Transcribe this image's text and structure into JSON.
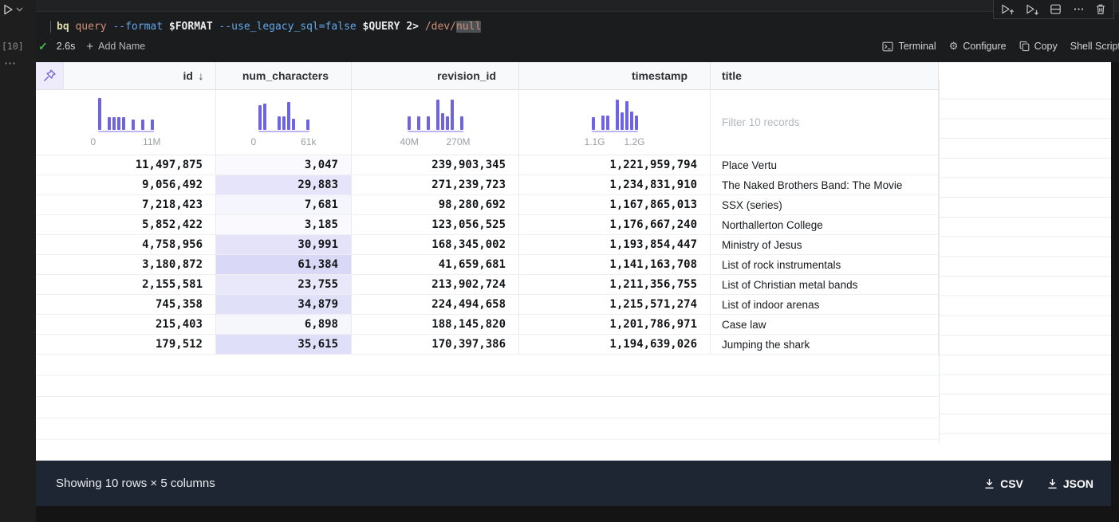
{
  "colors": {
    "accent_purple": "#6e63e0",
    "heat_max": "#d9d8f6",
    "success_green": "#3fb950",
    "footer_bg": "#1f2633"
  },
  "left_rail": {
    "execution_count": "[10]"
  },
  "cell": {
    "command_tokens": [
      {
        "text": "bq",
        "color": "#dcdcaa",
        "bold": true
      },
      {
        "text": " query",
        "color": "#ce9178"
      },
      {
        "text": " --format",
        "color": "#62a8ea"
      },
      {
        "text": " $FORMAT",
        "color": "#eaeaea",
        "bold": true
      },
      {
        "text": " --use_legacy_sql=false",
        "color": "#62a8ea"
      },
      {
        "text": " $QUERY",
        "color": "#eaeaea",
        "bold": true
      },
      {
        "text": " 2>",
        "color": "#eaeaea",
        "bold": true
      },
      {
        "text": " /dev/",
        "color": "#ce9178"
      },
      {
        "text": "null",
        "color": "#ce9178",
        "highlight": true
      }
    ],
    "status": {
      "duration": "2.6s",
      "add_name_label": "Add Name"
    },
    "actions": [
      {
        "label": "Terminal"
      },
      {
        "label": "Configure"
      },
      {
        "label": "Copy"
      },
      {
        "label": "Shell Script"
      }
    ]
  },
  "table": {
    "columns": [
      {
        "key": "id",
        "label": "id",
        "sorted": "desc",
        "hist": {
          "heights": [
            40,
            0,
            16,
            16,
            16,
            16,
            0,
            13,
            0,
            13,
            0,
            13
          ],
          "min": "0",
          "max": "11M"
        }
      },
      {
        "key": "num_characters",
        "label": "num_characters",
        "hist": {
          "heights": [
            31,
            33,
            0,
            0,
            17,
            17,
            35,
            14,
            0,
            0,
            13
          ],
          "min": "0",
          "max": "61k"
        }
      },
      {
        "key": "revision_id",
        "label": "revision_id",
        "hist": {
          "heights": [
            17,
            0,
            17,
            0,
            17,
            0,
            38,
            21,
            17,
            38,
            0,
            17
          ],
          "min": "40M",
          "max": "270M"
        }
      },
      {
        "key": "timestamp",
        "label": "timestamp",
        "hist": {
          "heights": [
            16,
            0,
            18,
            18,
            0,
            38,
            22,
            36,
            23,
            18
          ],
          "min": "1.1G",
          "max": "1.2G"
        }
      },
      {
        "key": "title",
        "label": "title",
        "filter_placeholder": "Filter 10 records"
      }
    ],
    "rows": [
      {
        "id": "11,497,875",
        "num_characters": "3,047",
        "num_bg": "#fafafe",
        "revision_id": "239,903,345",
        "timestamp": "1,221,959,794",
        "title": "Place Vertu"
      },
      {
        "id": "9,056,492",
        "num_characters": "29,883",
        "num_bg": "#e5e4fa",
        "revision_id": "271,239,723",
        "timestamp": "1,234,831,910",
        "title": "The Naked Brothers Band: The Movie"
      },
      {
        "id": "7,218,423",
        "num_characters": "7,681",
        "num_bg": "#f5f5fd",
        "revision_id": "98,280,692",
        "timestamp": "1,167,865,013",
        "title": "SSX (series)"
      },
      {
        "id": "5,852,422",
        "num_characters": "3,185",
        "num_bg": "#fafafe",
        "revision_id": "123,056,525",
        "timestamp": "1,176,667,240",
        "title": "Northallerton College"
      },
      {
        "id": "4,758,956",
        "num_characters": "30,991",
        "num_bg": "#e4e3fa",
        "revision_id": "168,345,002",
        "timestamp": "1,193,854,447",
        "title": "Ministry of Jesus"
      },
      {
        "id": "3,180,872",
        "num_characters": "61,384",
        "num_bg": "#d9d8f6",
        "revision_id": "41,659,681",
        "timestamp": "1,141,163,708",
        "title": "List of rock instrumentals"
      },
      {
        "id": "2,155,581",
        "num_characters": "23,755",
        "num_bg": "#e9e8fb",
        "revision_id": "213,902,724",
        "timestamp": "1,211,356,755",
        "title": "List of Christian metal bands"
      },
      {
        "id": "745,358",
        "num_characters": "34,879",
        "num_bg": "#e1e0f9",
        "revision_id": "224,494,658",
        "timestamp": "1,215,571,274",
        "title": "List of indoor arenas"
      },
      {
        "id": "215,403",
        "num_characters": "6,898",
        "num_bg": "#f6f6fd",
        "revision_id": "188,145,820",
        "timestamp": "1,201,786,971",
        "title": "Case law"
      },
      {
        "id": "179,512",
        "num_characters": "35,615",
        "num_bg": "#e0dff9",
        "revision_id": "170,397,386",
        "timestamp": "1,194,639,026",
        "title": "Jumping the shark"
      }
    ]
  },
  "footer": {
    "summary": "Showing 10 rows × 5 columns",
    "csv_label": "CSV",
    "json_label": "JSON"
  }
}
